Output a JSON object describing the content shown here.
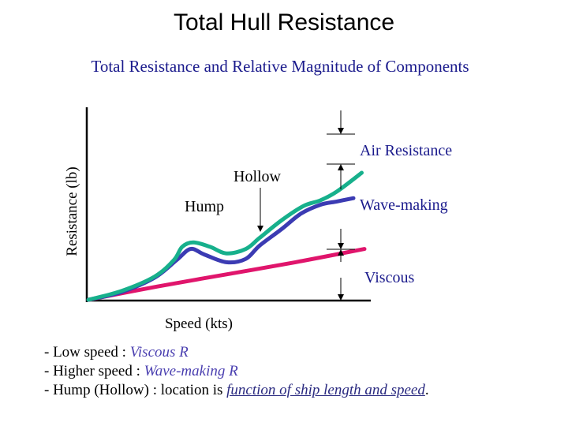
{
  "slide": {
    "title": "Total Hull Resistance"
  },
  "chart_data": {
    "type": "line",
    "title": "Total Resistance and Relative Magnitude of Components",
    "xlabel": "Speed (kts)",
    "ylabel": "Resistance (lb)",
    "xlim": [
      0,
      100
    ],
    "ylim": [
      0,
      100
    ],
    "grid": false,
    "legend": "none",
    "series": [
      {
        "color": "#e0156c",
        "x": [
          0,
          25,
          50,
          75,
          100
        ],
        "y": [
          0,
          12,
          23,
          34,
          46
        ]
      },
      {
        "color": "#3b3bb3",
        "x": [
          0,
          12,
          24,
          32,
          37,
          42,
          50,
          57,
          62,
          70,
          77,
          84,
          90,
          96
        ],
        "y": [
          0,
          7,
          20,
          36,
          46,
          41,
          34,
          37,
          49,
          64,
          78,
          86,
          89,
          92
        ]
      },
      {
        "color": "#17b08c",
        "x": [
          0,
          12,
          24,
          31,
          34,
          38,
          44,
          50,
          57,
          62,
          70,
          78,
          84,
          90,
          99
        ],
        "y": [
          0,
          8,
          21,
          36,
          48,
          52,
          48,
          42,
          46,
          56,
          72,
          85,
          90,
          98,
          115
        ]
      }
    ],
    "annotations": [
      {
        "label": "Air Resistance",
        "color": "#1a1a8c"
      },
      {
        "label": "Hollow",
        "color": "#000000"
      },
      {
        "label": "Hump",
        "color": "#000000"
      },
      {
        "label": "Wave-making",
        "color": "#1a1a8c"
      },
      {
        "label": "Viscous",
        "color": "#1a1a8c"
      }
    ]
  },
  "notes": [
    {
      "prefix": "- Low speed : ",
      "term": "Viscous R"
    },
    {
      "prefix": "- Higher speed : ",
      "term": "Wave-making R"
    },
    {
      "prefix": "- Hump (Hollow) : location is ",
      "term": "function of ship length and speed",
      "suffix": "."
    }
  ],
  "colors": {
    "title_text": "#1a1a8c",
    "accent_text": "#4a3fb0"
  }
}
